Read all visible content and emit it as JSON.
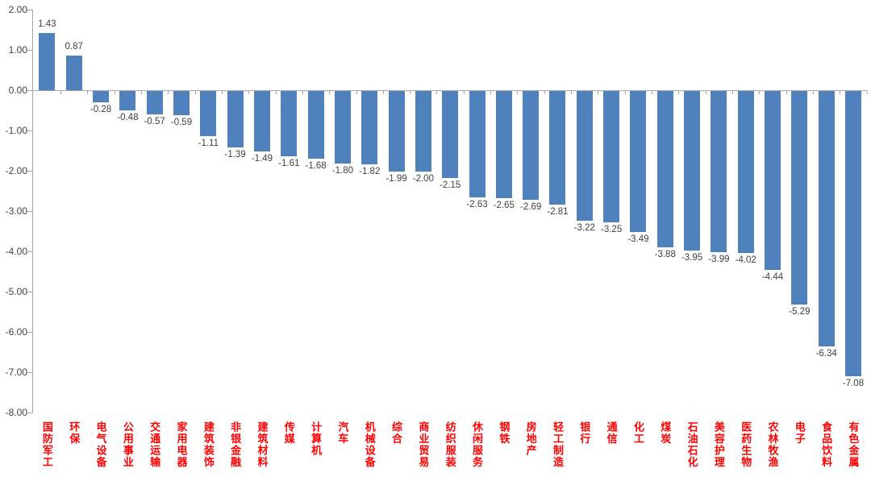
{
  "chart_data": {
    "type": "bar",
    "title": "",
    "xlabel": "",
    "ylabel": "",
    "categories": [
      "国防军工",
      "环保",
      "电气设备",
      "公用事业",
      "交通运输",
      "家用电器",
      "建筑装饰",
      "非银金融",
      "建筑材料",
      "传媒",
      "计算机",
      "汽车",
      "机械设备",
      "综合",
      "商业贸易",
      "纺织服装",
      "休闲服务",
      "钢铁",
      "房地产",
      "轻工制造",
      "银行",
      "通信",
      "化工",
      "煤炭",
      "石油石化",
      "美容护理",
      "医药生物",
      "农林牧渔",
      "电子",
      "食品饮料",
      "有色金属"
    ],
    "values": [
      1.43,
      0.87,
      -0.28,
      -0.48,
      -0.57,
      -0.59,
      -1.11,
      -1.39,
      -1.49,
      -1.61,
      -1.68,
      -1.8,
      -1.82,
      -1.99,
      -2.0,
      -2.15,
      -2.63,
      -2.65,
      -2.69,
      -2.81,
      -3.22,
      -3.25,
      -3.49,
      -3.88,
      -3.95,
      -3.99,
      -4.02,
      -4.44,
      -5.29,
      -6.34,
      -7.08
    ],
    "value_labels": [
      "1.43",
      "0.87",
      "-0.28",
      "-0.48",
      "-0.57",
      "-0.59",
      "-1.11",
      "-1.39",
      "-1.49",
      "-1.61",
      "-1.68",
      "-1.80",
      "-1.82",
      "-1.99",
      "-2.00",
      "-2.15",
      "-2.63",
      "-2.65",
      "-2.69",
      "-2.81",
      "-3.22",
      "-3.25",
      "-3.49",
      "-3.88",
      "-3.95",
      "-3.99",
      "-4.02",
      "-4.44",
      "-5.29",
      "-6.34",
      "-7.08"
    ],
    "y_axis_ticks": [
      "2.00",
      "1.00",
      "0.00",
      "-1.00",
      "-2.00",
      "-3.00",
      "-4.00",
      "-5.00",
      "-6.00",
      "-7.00",
      "-8.00"
    ],
    "ylim": [
      -8,
      2
    ],
    "grid": false,
    "legend": false,
    "colors": {
      "bar": "#4F81BD",
      "category_label": "#FF0000",
      "value_label": "#404040",
      "axis": "#A6A6A6"
    }
  }
}
